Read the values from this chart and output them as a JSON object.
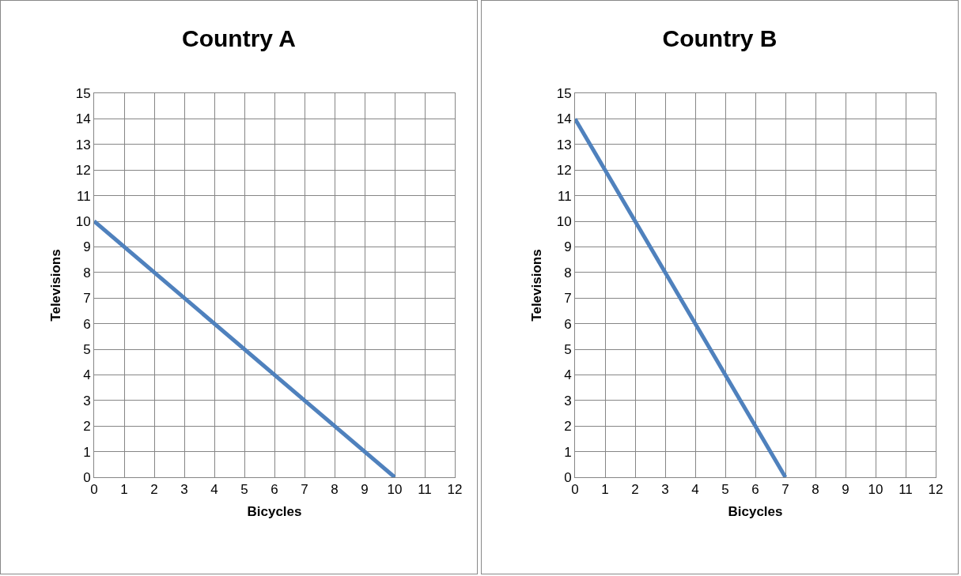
{
  "chart_data": [
    {
      "type": "line",
      "title": "Country A",
      "xlabel": "Bicycles",
      "ylabel": "Televisions",
      "x": [
        0,
        10
      ],
      "series": [
        {
          "color": "#4f81bd",
          "values": [
            10,
            0
          ]
        }
      ],
      "xlim": [
        0,
        12
      ],
      "xticks": [
        0,
        1,
        2,
        3,
        4,
        5,
        6,
        7,
        8,
        9,
        10,
        11,
        12
      ],
      "ylim": [
        0,
        15
      ],
      "yticks": [
        0,
        1,
        2,
        3,
        4,
        5,
        6,
        7,
        8,
        9,
        10,
        11,
        12,
        13,
        14,
        15
      ],
      "grid": true,
      "marker": "none",
      "line_style": "solid"
    },
    {
      "type": "line",
      "title": "Country B",
      "xlabel": "Bicycles",
      "ylabel": "Televisions",
      "x": [
        0,
        7
      ],
      "series": [
        {
          "color": "#4f81bd",
          "values": [
            14,
            0
          ]
        }
      ],
      "xlim": [
        0,
        12
      ],
      "xticks": [
        0,
        1,
        2,
        3,
        4,
        5,
        6,
        7,
        8,
        9,
        10,
        11,
        12
      ],
      "ylim": [
        0,
        15
      ],
      "yticks": [
        0,
        1,
        2,
        3,
        4,
        5,
        6,
        7,
        8,
        9,
        10,
        11,
        12,
        13,
        14,
        15
      ],
      "grid": true,
      "marker": "none",
      "line_style": "solid"
    }
  ]
}
